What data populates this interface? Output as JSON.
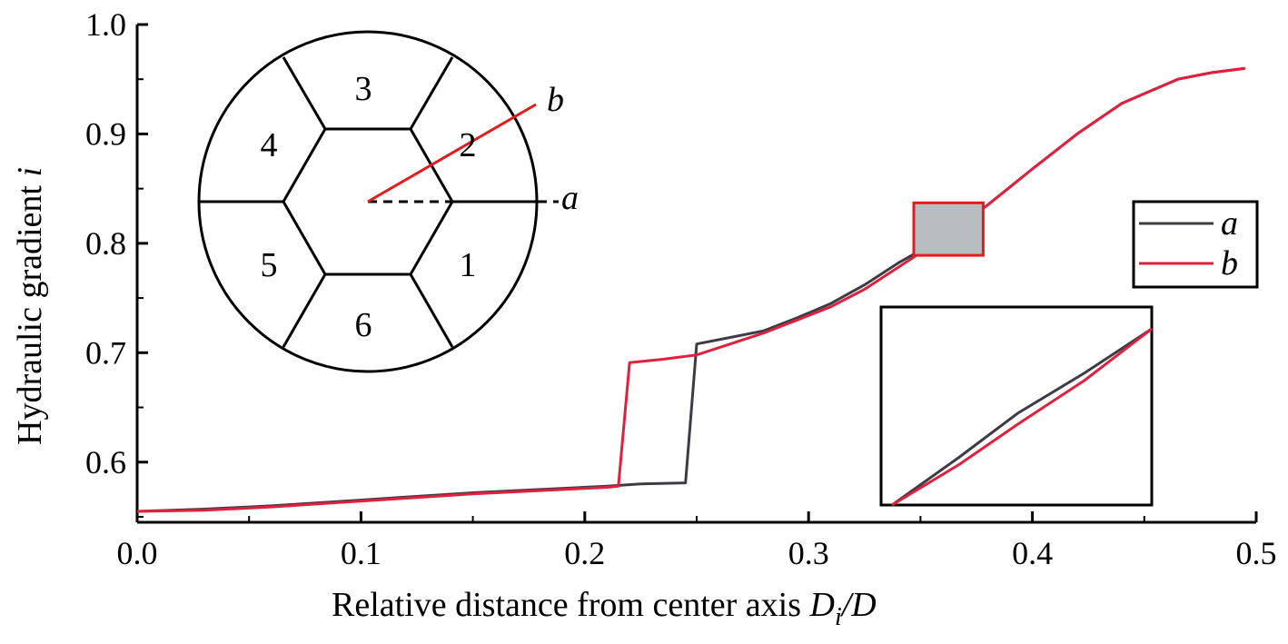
{
  "chart_data": {
    "type": "line",
    "xlabel": "Relative distance from center axis ",
    "xlabel_math": {
      "base": "D",
      "sub": "i",
      "rest": "/D"
    },
    "ylabel": "Hydraulic gradient ",
    "ylabel_var": "i",
    "xlim": [
      0.0,
      0.5
    ],
    "ylim": [
      0.545,
      1.0
    ],
    "xticks": [
      "0.0",
      "0.1",
      "0.2",
      "0.3",
      "0.4",
      "0.5"
    ],
    "yticks": [
      "0.6",
      "0.7",
      "0.8",
      "0.9",
      "1.0"
    ],
    "grid": false,
    "legend_position": "right",
    "colors": {
      "a": "#3c3c46",
      "b": "#e0203c",
      "highlight_fill": "#b8bec0",
      "highlight_stroke": "#e41a1c"
    },
    "series": [
      {
        "name": "a",
        "x": [
          0.0,
          0.03,
          0.06,
          0.09,
          0.12,
          0.15,
          0.18,
          0.21,
          0.225,
          0.245,
          0.25,
          0.265,
          0.28,
          0.295,
          0.31,
          0.325,
          0.34,
          0.36,
          0.38,
          0.4,
          0.42,
          0.44,
          0.465,
          0.48,
          0.495
        ],
        "y": [
          0.555,
          0.557,
          0.56,
          0.564,
          0.568,
          0.572,
          0.575,
          0.578,
          0.58,
          0.581,
          0.708,
          0.714,
          0.72,
          0.732,
          0.745,
          0.762,
          0.782,
          0.805,
          0.835,
          0.868,
          0.9,
          0.928,
          0.95,
          0.956,
          0.96
        ]
      },
      {
        "name": "b",
        "x": [
          0.0,
          0.03,
          0.06,
          0.09,
          0.12,
          0.15,
          0.18,
          0.21,
          0.215,
          0.22,
          0.235,
          0.25,
          0.265,
          0.28,
          0.295,
          0.31,
          0.325,
          0.34,
          0.36,
          0.38,
          0.4,
          0.42,
          0.44,
          0.465,
          0.48,
          0.495
        ],
        "y": [
          0.555,
          0.556,
          0.559,
          0.563,
          0.567,
          0.571,
          0.574,
          0.577,
          0.578,
          0.691,
          0.694,
          0.698,
          0.708,
          0.718,
          0.73,
          0.742,
          0.758,
          0.778,
          0.805,
          0.835,
          0.868,
          0.9,
          0.928,
          0.95,
          0.956,
          0.96
        ]
      }
    ],
    "highlight_box": {
      "x": [
        0.347,
        0.378
      ],
      "y": [
        0.789,
        0.837
      ]
    },
    "inset": {
      "x": [
        0.347,
        0.378
      ],
      "y": [
        0.789,
        0.837
      ],
      "series": [
        {
          "name": "a",
          "x": [
            0.347,
            0.355,
            0.362,
            0.37,
            0.378
          ],
          "y": [
            0.789,
            0.802,
            0.814,
            0.825,
            0.837
          ]
        },
        {
          "name": "b",
          "x": [
            0.347,
            0.355,
            0.362,
            0.37,
            0.378
          ],
          "y": [
            0.789,
            0.8,
            0.811,
            0.823,
            0.837
          ]
        }
      ]
    },
    "schematic": {
      "sector_labels": [
        "1",
        "2",
        "3",
        "4",
        "5",
        "6"
      ],
      "line_a_label": "a",
      "line_b_label": "b"
    }
  }
}
